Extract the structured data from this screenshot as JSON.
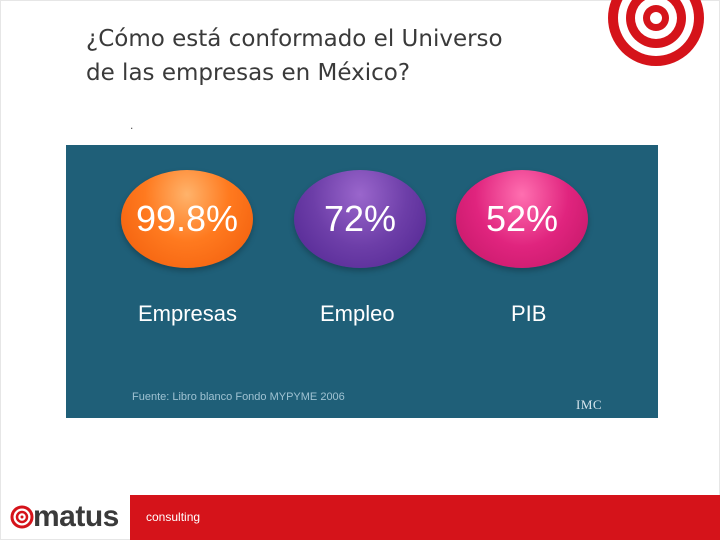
{
  "title": {
    "line1": "¿Cómo está conformado el Universo",
    "line2": "de las empresas en México?"
  },
  "dot": ".",
  "stats": [
    {
      "value": "99.8%",
      "label": "Empresas",
      "color": "#f26513"
    },
    {
      "value": "72%",
      "label": "Empleo",
      "color": "#5b2d9a"
    },
    {
      "value": "52%",
      "label": "PIB",
      "color": "#d81b72"
    }
  ],
  "source": "Fuente: Libro blanco Fondo MYPYME 2006",
  "panel_logo": "IMC",
  "footer": {
    "brand": "matus",
    "tagline": "consulting",
    "band_color": "#d5131a"
  },
  "colors": {
    "panel_bg": "#1f5f78",
    "target_logo": "#d5131a"
  },
  "icons": {
    "target_logo": "target-icon",
    "matus_logo": "spiral-icon"
  }
}
